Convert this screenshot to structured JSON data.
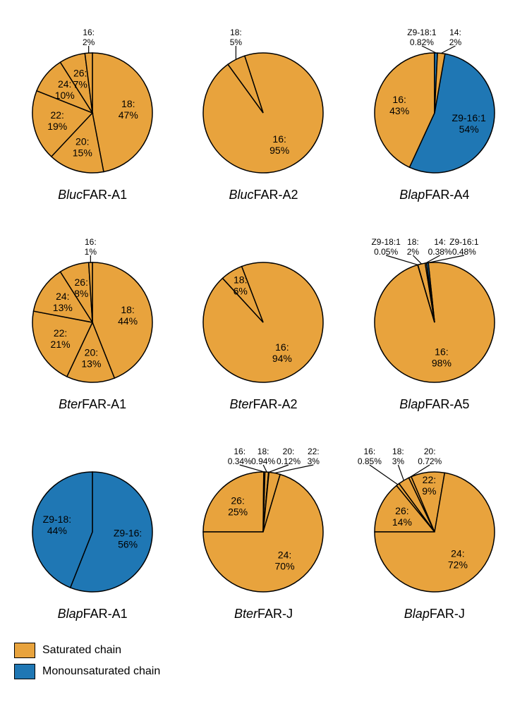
{
  "colors": {
    "saturated": "#e8a33d",
    "mono": "#1f77b4",
    "stroke": "#000000",
    "background": "#ffffff"
  },
  "legend": [
    {
      "label": "Saturated chain",
      "colorKey": "saturated"
    },
    {
      "label": "Monounsaturated chain",
      "colorKey": "mono"
    }
  ],
  "label_fontsize": 14,
  "title_fontsize": 18,
  "charts": [
    {
      "id": "blucA1",
      "title": [
        [
          "Bluc",
          true
        ],
        [
          "FAR-A1",
          false
        ]
      ],
      "radius": 85,
      "startAngle": -90,
      "slices": [
        {
          "name": "18",
          "pct": 47,
          "colorKey": "saturated",
          "label": [
            "18:",
            "47%"
          ],
          "place": "in"
        },
        {
          "name": "20",
          "pct": 15,
          "colorKey": "saturated",
          "label": [
            "20:",
            "15%"
          ],
          "place": "in"
        },
        {
          "name": "22",
          "pct": 19,
          "colorKey": "saturated",
          "label": [
            "22:",
            "19%"
          ],
          "place": "in"
        },
        {
          "name": "24",
          "pct": 10,
          "colorKey": "saturated",
          "label": [
            "24:",
            "10%"
          ],
          "place": "in"
        },
        {
          "name": "26",
          "pct": 7,
          "colorKey": "saturated",
          "label": [
            "26:",
            "7%"
          ],
          "place": "in"
        },
        {
          "name": "16",
          "pct": 2,
          "colorKey": "saturated",
          "label": [
            "16:",
            "2%"
          ],
          "place": "out"
        }
      ]
    },
    {
      "id": "blucA2",
      "title": [
        [
          "Bluc",
          true
        ],
        [
          "FAR-A2",
          false
        ]
      ],
      "radius": 85,
      "startAngle": -108,
      "slices": [
        {
          "name": "16",
          "pct": 95,
          "colorKey": "saturated",
          "label": [
            "16:",
            "95%"
          ],
          "place": "in"
        },
        {
          "name": "18",
          "pct": 5,
          "colorKey": "saturated",
          "label": [
            "18:",
            "5%"
          ],
          "place": "out"
        }
      ]
    },
    {
      "id": "blapA4",
      "title": [
        [
          "Blap",
          true
        ],
        [
          "FAR-A4",
          false
        ]
      ],
      "radius": 85,
      "startAngle": -80,
      "slices": [
        {
          "name": "Z9-16:1",
          "pct": 54,
          "colorKey": "mono",
          "label": [
            "Z9-16:1",
            "54%"
          ],
          "place": "in"
        },
        {
          "name": "16",
          "pct": 43,
          "colorKey": "saturated",
          "label": [
            "16:",
            "43%"
          ],
          "place": "in"
        },
        {
          "name": "Z9-18:1",
          "pct": 0.82,
          "colorKey": "mono",
          "label": [
            "Z9-18:1",
            "0.82%"
          ],
          "place": "out",
          "outOffset": [
            -20,
            0
          ]
        },
        {
          "name": "14",
          "pct": 2,
          "colorKey": "saturated",
          "label": [
            "14:",
            "2%"
          ],
          "place": "out",
          "outOffset": [
            20,
            0
          ]
        }
      ]
    },
    {
      "id": "bterA1",
      "title": [
        [
          "Bter",
          true
        ],
        [
          "FAR-A1",
          false
        ]
      ],
      "radius": 85,
      "startAngle": -90,
      "slices": [
        {
          "name": "18",
          "pct": 44,
          "colorKey": "saturated",
          "label": [
            "18:",
            "44%"
          ],
          "place": "in"
        },
        {
          "name": "20",
          "pct": 13,
          "colorKey": "saturated",
          "label": [
            "20:",
            "13%"
          ],
          "place": "in"
        },
        {
          "name": "22",
          "pct": 21,
          "colorKey": "saturated",
          "label": [
            "22:",
            "21%"
          ],
          "place": "in"
        },
        {
          "name": "24",
          "pct": 13,
          "colorKey": "saturated",
          "label": [
            "24:",
            "13%"
          ],
          "place": "in"
        },
        {
          "name": "26",
          "pct": 8,
          "colorKey": "saturated",
          "label": [
            "26:",
            "8%"
          ],
          "place": "in"
        },
        {
          "name": "16",
          "pct": 1,
          "colorKey": "saturated",
          "label": [
            "16:",
            "1%"
          ],
          "place": "out"
        }
      ]
    },
    {
      "id": "bterA2",
      "title": [
        [
          "Bter",
          true
        ],
        [
          "FAR-A2",
          false
        ]
      ],
      "radius": 85,
      "startAngle": -111,
      "slices": [
        {
          "name": "16",
          "pct": 94,
          "colorKey": "saturated",
          "label": [
            "16:",
            "94%"
          ],
          "place": "in"
        },
        {
          "name": "18",
          "pct": 6,
          "colorKey": "saturated",
          "label": [
            "18:",
            "6%"
          ],
          "place": "in",
          "labelR": 0.72
        }
      ]
    },
    {
      "id": "blapA5",
      "title": [
        [
          "Blap",
          true
        ],
        [
          "FAR-A5",
          false
        ]
      ],
      "radius": 85,
      "startAngle": -96,
      "slices": [
        {
          "name": "16",
          "pct": 98,
          "colorKey": "saturated",
          "label": [
            "16:",
            "98%"
          ],
          "place": "in"
        },
        {
          "name": "Z9-18:1",
          "pct": 0.05,
          "colorKey": "mono",
          "label": [
            "Z9-18:1",
            "0.05%"
          ],
          "place": "out",
          "outOffset": [
            -45,
            0
          ]
        },
        {
          "name": "18",
          "pct": 2,
          "colorKey": "saturated",
          "label": [
            "18:",
            "2%"
          ],
          "place": "out",
          "outOffset": [
            -12,
            0
          ]
        },
        {
          "name": "14",
          "pct": 0.38,
          "colorKey": "saturated",
          "label": [
            "14:",
            "0.38%"
          ],
          "place": "out",
          "outOffset": [
            20,
            0
          ]
        },
        {
          "name": "Z9-16:1",
          "pct": 0.48,
          "colorKey": "mono",
          "label": [
            "Z9-16:1",
            "0.48%"
          ],
          "place": "out",
          "outOffset": [
            52,
            0
          ]
        }
      ]
    },
    {
      "id": "blapA1",
      "title": [
        [
          "Blap",
          true
        ],
        [
          "FAR-A1",
          false
        ]
      ],
      "radius": 85,
      "startAngle": -90,
      "slices": [
        {
          "name": "Z9-16",
          "pct": 56,
          "colorKey": "mono",
          "label": [
            "Z9-16:",
            "56%"
          ],
          "place": "in"
        },
        {
          "name": "Z9-18",
          "pct": 44,
          "colorKey": "mono",
          "label": [
            "Z9-18:",
            "44%"
          ],
          "place": "in"
        }
      ]
    },
    {
      "id": "bterJ",
      "title": [
        [
          "Bter",
          true
        ],
        [
          "FAR-J",
          false
        ]
      ],
      "radius": 85,
      "startAngle": -180,
      "slices": [
        {
          "name": "26",
          "pct": 25,
          "colorKey": "saturated",
          "label": [
            "26:",
            "25%"
          ],
          "place": "in"
        },
        {
          "name": "16",
          "pct": 0.34,
          "colorKey": "saturated",
          "label": [
            "16:",
            "0.34%"
          ],
          "place": "out",
          "outOffset": [
            -35,
            0
          ]
        },
        {
          "name": "18",
          "pct": 0.94,
          "colorKey": "saturated",
          "label": [
            "18:",
            "0.94%"
          ],
          "place": "out",
          "outOffset": [
            -5,
            0
          ]
        },
        {
          "name": "20",
          "pct": 0.12,
          "colorKey": "saturated",
          "label": [
            "20:",
            "0.12%"
          ],
          "place": "out",
          "outOffset": [
            28,
            0
          ]
        },
        {
          "name": "22",
          "pct": 3,
          "colorKey": "saturated",
          "label": [
            "22:",
            "3%"
          ],
          "place": "out",
          "outOffset": [
            55,
            0
          ]
        },
        {
          "name": "24",
          "pct": 70,
          "colorKey": "saturated",
          "label": [
            "24:",
            "70%"
          ],
          "place": "in"
        }
      ]
    },
    {
      "id": "blapJ",
      "title": [
        [
          "Blap",
          true
        ],
        [
          "FAR-J",
          false
        ]
      ],
      "radius": 85,
      "startAngle": -180,
      "slices": [
        {
          "name": "26",
          "pct": 14,
          "colorKey": "saturated",
          "label": [
            "26:",
            "14%"
          ],
          "place": "in"
        },
        {
          "name": "16",
          "pct": 0.85,
          "colorKey": "saturated",
          "label": [
            "16:",
            "0.85%"
          ],
          "place": "out",
          "outOffset": [
            -40,
            0
          ]
        },
        {
          "name": "18",
          "pct": 3,
          "colorKey": "saturated",
          "label": [
            "18:",
            "3%"
          ],
          "place": "out",
          "outOffset": [
            -8,
            0
          ]
        },
        {
          "name": "20",
          "pct": 0.72,
          "colorKey": "saturated",
          "label": [
            "20:",
            "0.72%"
          ],
          "place": "out",
          "outOffset": [
            28,
            0
          ]
        },
        {
          "name": "22",
          "pct": 9,
          "colorKey": "saturated",
          "label": [
            "22:",
            "9%"
          ],
          "place": "in",
          "labelR": 0.78
        },
        {
          "name": "24",
          "pct": 72,
          "colorKey": "saturated",
          "label": [
            "24:",
            "72%"
          ],
          "place": "in"
        }
      ]
    }
  ]
}
